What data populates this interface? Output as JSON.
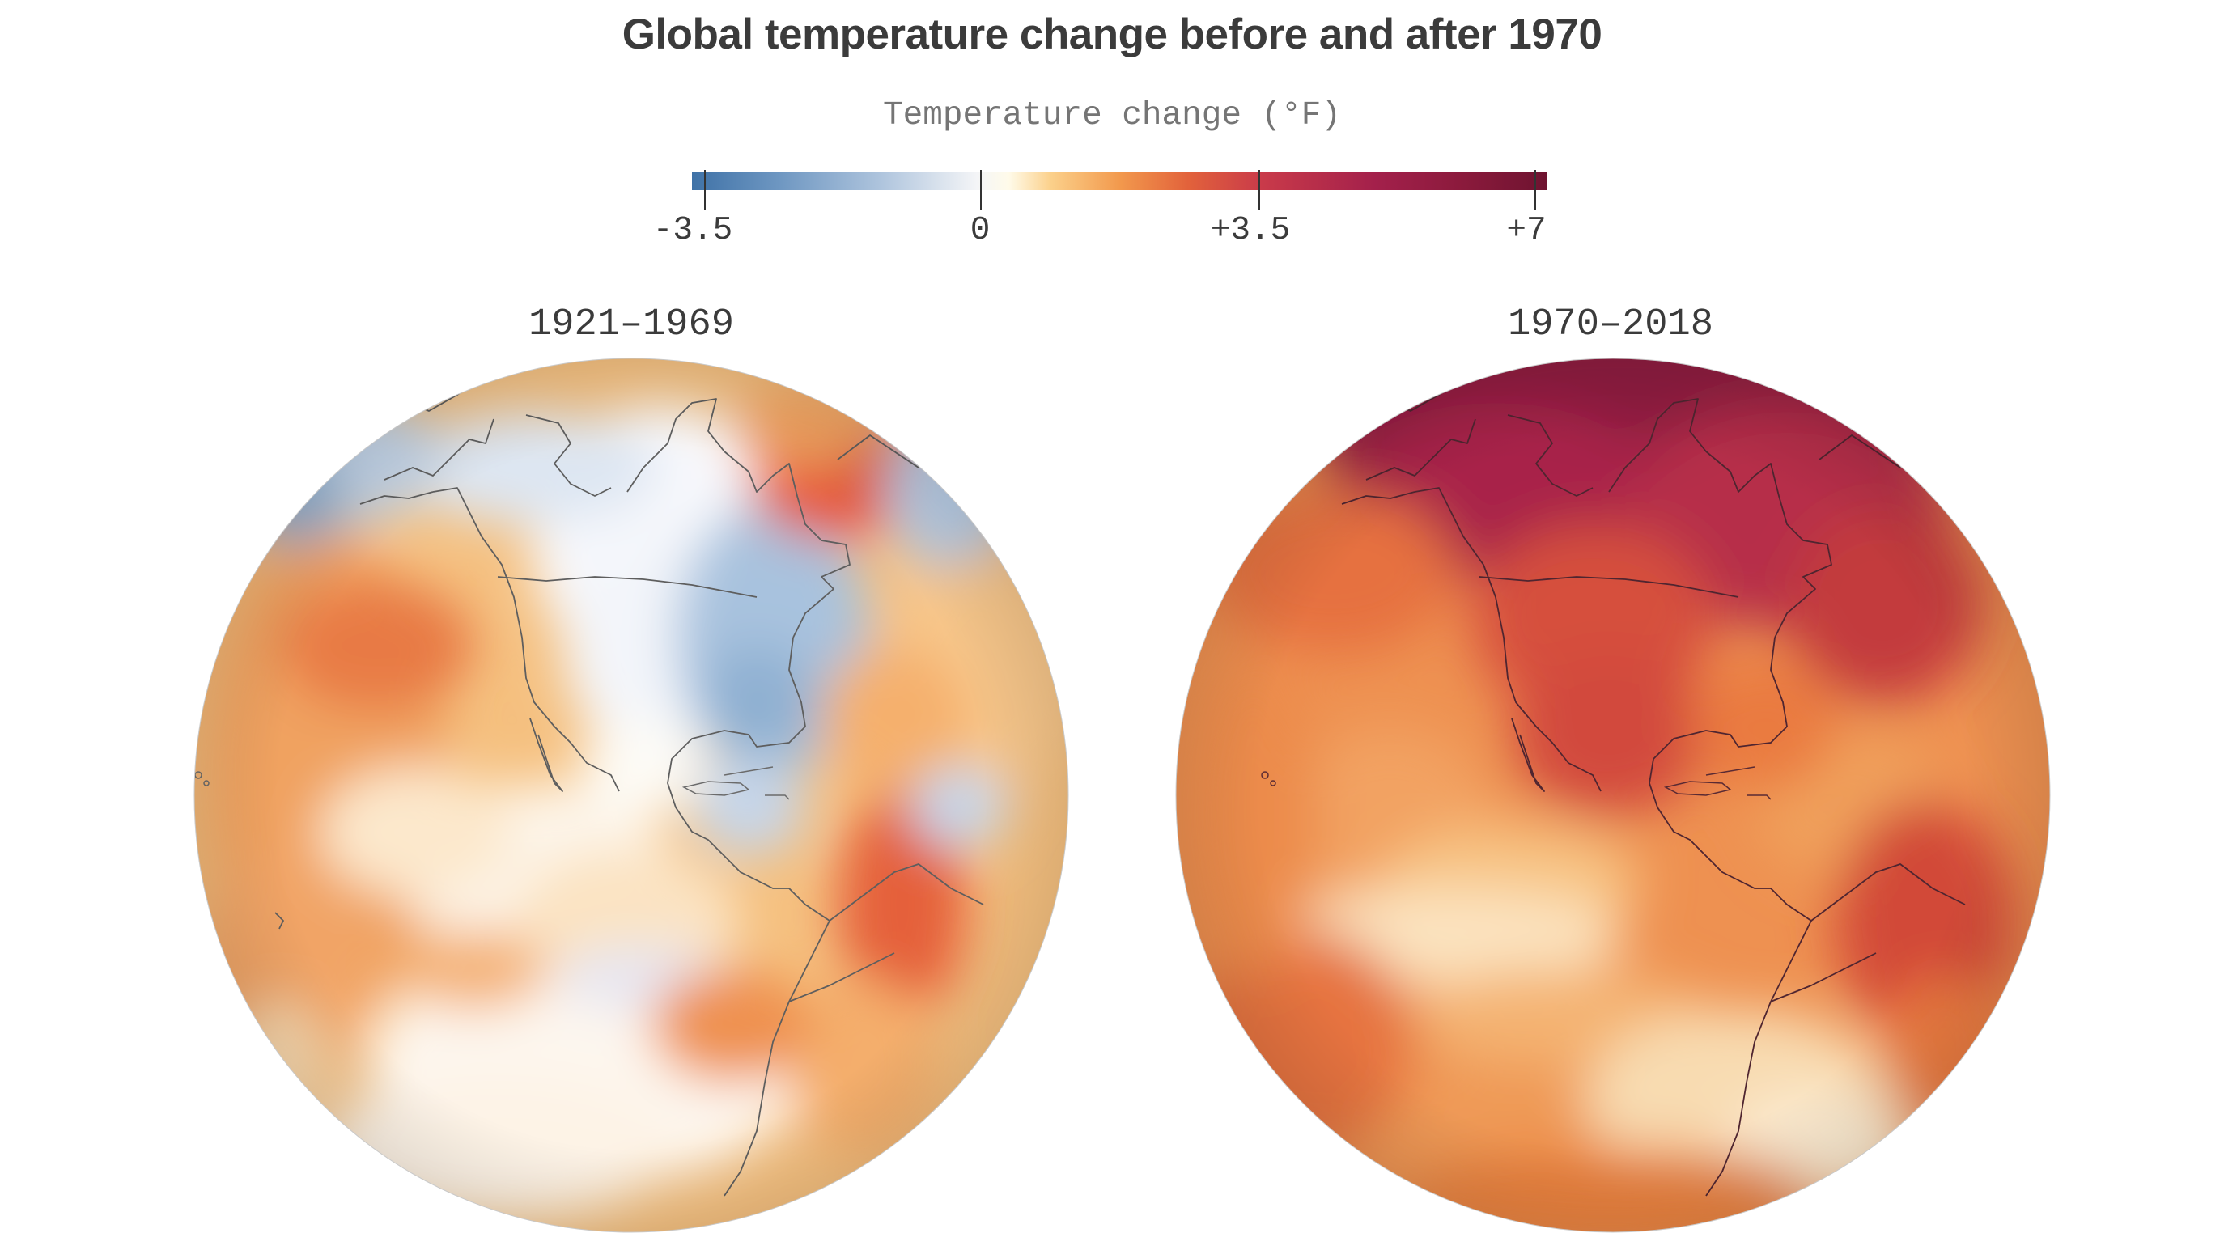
{
  "title": "Global temperature change before and after 1970",
  "legend": {
    "title": "Temperature change (°F)",
    "ticks": [
      "-3.5",
      "0",
      "+3.5",
      "+7"
    ],
    "tick_values": [
      -3.5,
      0,
      3.5,
      7
    ],
    "range": [
      -3.5,
      7.0
    ],
    "colors": {
      "cold": "#3f72a7",
      "neutral": "#f4f5f7",
      "warm": "#f2994d",
      "hot": "#c93a4a",
      "hottest": "#6e1330"
    }
  },
  "panels": [
    {
      "label": "1921–1969"
    },
    {
      "label": "1970–2018"
    }
  ]
}
